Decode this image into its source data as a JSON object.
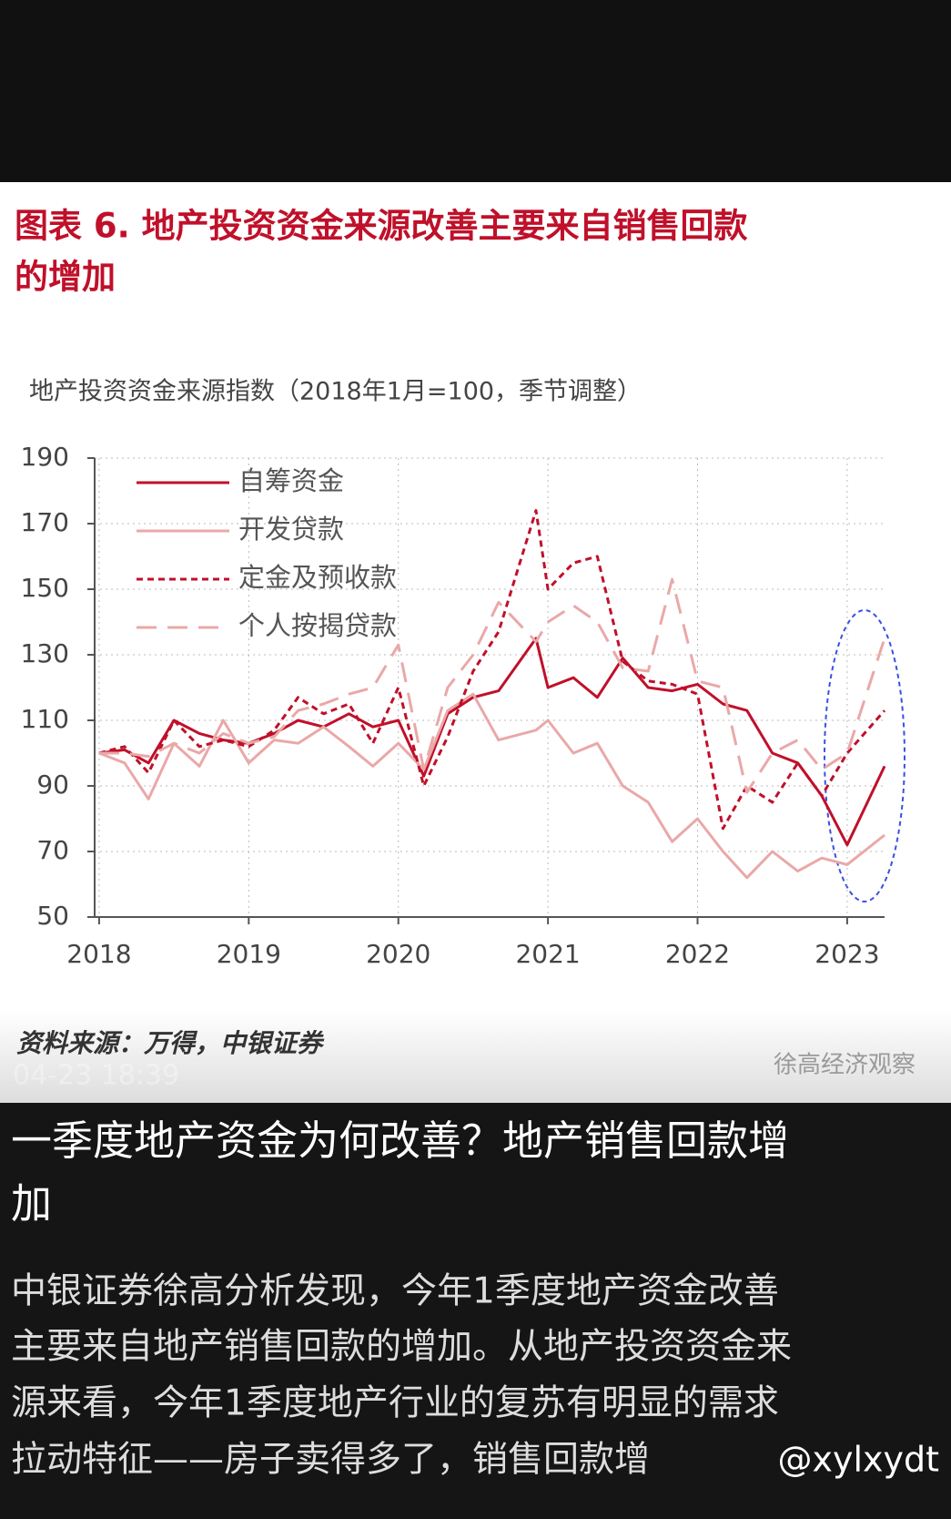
{
  "chart_data": {
    "type": "line",
    "title": [
      "图表 6.  地产投资资金来源改善主要来自销售回款",
      "的增加"
    ],
    "subtitle": "地产投资资金来源指数（2018年1月=100，季节调整）",
    "x": [
      2018,
      2018.17,
      2018.33,
      2018.5,
      2018.67,
      2018.83,
      2019,
      2019.17,
      2019.33,
      2019.5,
      2019.67,
      2019.83,
      2020,
      2020.17,
      2020.33,
      2020.5,
      2020.67,
      2020.92,
      2021,
      2021.17,
      2021.33,
      2021.5,
      2021.67,
      2021.83,
      2022,
      2022.17,
      2022.33,
      2022.5,
      2022.67,
      2022.83,
      2023,
      2023.25
    ],
    "series": [
      {
        "name": "自筹资金",
        "color": "#c0102a",
        "dash": "none",
        "values": [
          100,
          101,
          97,
          110,
          106,
          104,
          103,
          106,
          110,
          108,
          112,
          108,
          110,
          93,
          112,
          117,
          119,
          135,
          120,
          123,
          117,
          129,
          120,
          119,
          121,
          115,
          113,
          100,
          97,
          87,
          72,
          96
        ]
      },
      {
        "name": "开发贷款",
        "color": "#eaa8a8",
        "dash": "none",
        "values": [
          100,
          97,
          86,
          103,
          96,
          110,
          97,
          104,
          103,
          108,
          102,
          96,
          103,
          95,
          113,
          118,
          104,
          107,
          110,
          100,
          103,
          90,
          85,
          73,
          80,
          70,
          62,
          70,
          64,
          68,
          66,
          75
        ]
      },
      {
        "name": "定金及预收款",
        "color": "#c0102a",
        "dash": "7 5",
        "values": [
          100,
          102,
          94,
          110,
          102,
          104,
          102,
          107,
          117,
          112,
          115,
          103,
          120,
          90,
          105,
          125,
          137,
          174,
          150,
          158,
          160,
          128,
          122,
          121,
          118,
          77,
          90,
          85,
          97,
          87,
          100,
          113
        ]
      },
      {
        "name": "个人按揭贷款",
        "color": "#eaa8a8",
        "dash": "22 12",
        "values": [
          100,
          100,
          99,
          103,
          100,
          106,
          103,
          105,
          113,
          115,
          118,
          120,
          133,
          95,
          120,
          130,
          146,
          134,
          140,
          145,
          140,
          126,
          125,
          153,
          122,
          120,
          88,
          100,
          104,
          95,
          100,
          135
        ]
      }
    ],
    "xlim": [
      2017.97,
      2023.25
    ],
    "xticks": [
      2018,
      2019,
      2020,
      2021,
      2022,
      2023
    ],
    "ylim": [
      50,
      190
    ],
    "yticks": [
      50,
      70,
      90,
      110,
      130,
      150,
      170,
      190
    ],
    "grid": true,
    "source": "资料来源：万得，中银证券",
    "watermark": "徐高经济观察",
    "timestamp": "04-23 18:39"
  },
  "post": {
    "heading": [
      "一季度地产资金为何改善？地产销售回款增",
      "加"
    ],
    "body": [
      "中银证券徐高分析发现，今年1季度地产资金改善",
      "主要来自地产销售回款的增加。从地产投资资金来",
      "源来看，今年1季度地产行业的复苏有明显的需求",
      "拉动特征——房子卖得多了，销售回款增"
    ],
    "handle": "@xylxydt"
  }
}
